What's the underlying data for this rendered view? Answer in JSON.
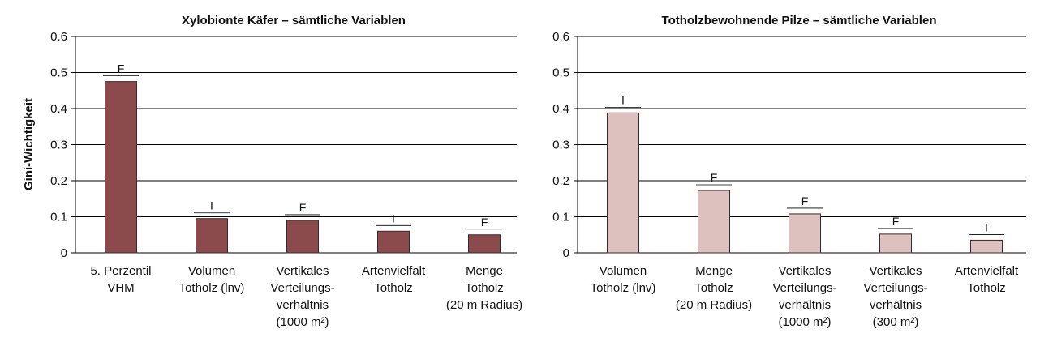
{
  "y_axis_label": "Gini-Wichtigkeit",
  "chart_data": [
    {
      "type": "bar",
      "title": "Xylobionte Käfer – sämtliche Variablen",
      "ylabel": "Gini-Wichtigkeit",
      "xlabel": "",
      "ylim": [
        0,
        0.6
      ],
      "yticks": [
        "0",
        "0.1",
        "0.2",
        "0.3",
        "0.4",
        "0.5",
        "0.6"
      ],
      "grid": true,
      "bar_color": "#8b4a4c",
      "categories": [
        [
          "5. Perzentil",
          "VHM"
        ],
        [
          "Volumen",
          "Totholz (lnv)"
        ],
        [
          "Vertikales",
          "Verteilungs-",
          "verhältnis",
          "(1000 m²)"
        ],
        [
          "Artenvielfalt",
          "Totholz"
        ],
        [
          "Menge",
          "Totholz",
          "(20 m Radius)"
        ]
      ],
      "values": [
        0.475,
        0.095,
        0.09,
        0.06,
        0.05
      ],
      "bar_labels": [
        "F",
        "I",
        "F",
        "I",
        "F"
      ]
    },
    {
      "type": "bar",
      "title": "Totholzbewohnende Pilze – sämtliche Variablen",
      "ylabel": "",
      "xlabel": "",
      "ylim": [
        0,
        0.6
      ],
      "yticks": [
        "0",
        "0.1",
        "0.2",
        "0.3",
        "0.4",
        "0.5",
        "0.6"
      ],
      "grid": true,
      "bar_color": "#dcc1bf",
      "categories": [
        [
          "Volumen",
          "Totholz (lnv)"
        ],
        [
          "Menge",
          "Totholz",
          "(20 m Radius)"
        ],
        [
          "Vertikales",
          "Verteilungs-",
          "verhältnis",
          "(1000 m²)"
        ],
        [
          "Vertikales",
          "Verteilungs-",
          "verhältnis",
          "(300 m²)"
        ],
        [
          "Artenvielfalt",
          "Totholz"
        ]
      ],
      "values": [
        0.388,
        0.173,
        0.108,
        0.052,
        0.035
      ],
      "bar_labels": [
        "I",
        "F",
        "F",
        "F",
        "I"
      ]
    }
  ]
}
